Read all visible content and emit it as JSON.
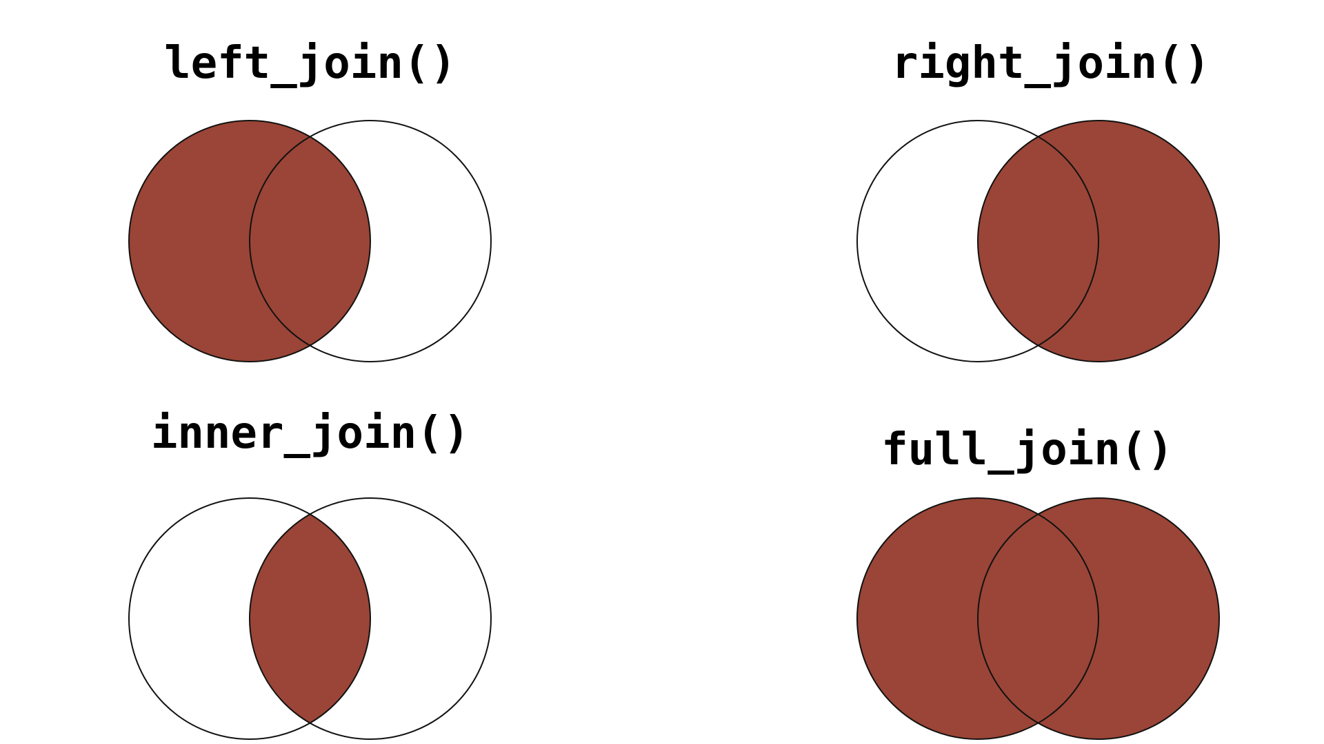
{
  "colors": {
    "fill": "#9a4537",
    "stroke": "#111111",
    "background": "#ffffff"
  },
  "diagrams": [
    {
      "id": "left",
      "title": "left_join()",
      "highlight": "left"
    },
    {
      "id": "right",
      "title": "right_join()",
      "highlight": "right"
    },
    {
      "id": "inner",
      "title": "inner_join()",
      "highlight": "inner"
    },
    {
      "id": "full",
      "title": "full_join()",
      "highlight": "full"
    }
  ]
}
